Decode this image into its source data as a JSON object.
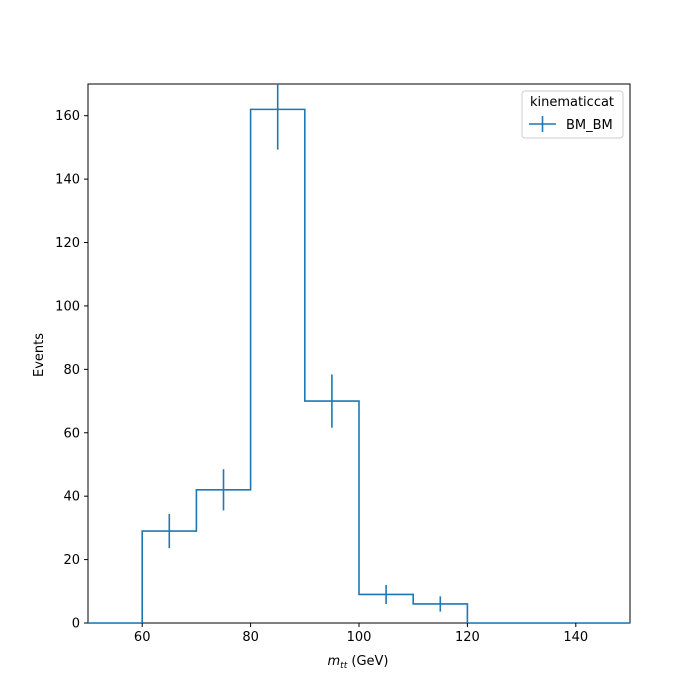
{
  "chart_data": {
    "type": "histogram",
    "title": "",
    "xlabel_math": "m",
    "xlabel_sub": "tt",
    "xlabel_unit": " (GeV)",
    "ylabel": "Events",
    "xlim": [
      50,
      150
    ],
    "ylim": [
      0,
      170
    ],
    "xticks": [
      60,
      80,
      100,
      120,
      140
    ],
    "yticks": [
      0,
      20,
      40,
      60,
      80,
      100,
      120,
      140,
      160
    ],
    "grid": false,
    "bin_edges": [
      50,
      60,
      70,
      80,
      90,
      100,
      110,
      120,
      130,
      140,
      150
    ],
    "series": [
      {
        "name": "BM_BM",
        "color": "#1f77b4",
        "values": [
          0,
          29,
          42,
          162,
          70,
          9,
          6,
          0,
          0,
          0
        ],
        "errors": [
          0,
          5.4,
          6.5,
          12.7,
          8.4,
          3.0,
          2.4,
          0,
          0,
          0
        ]
      }
    ],
    "legend": {
      "title": "kinematiccat",
      "position": "top-right"
    }
  }
}
